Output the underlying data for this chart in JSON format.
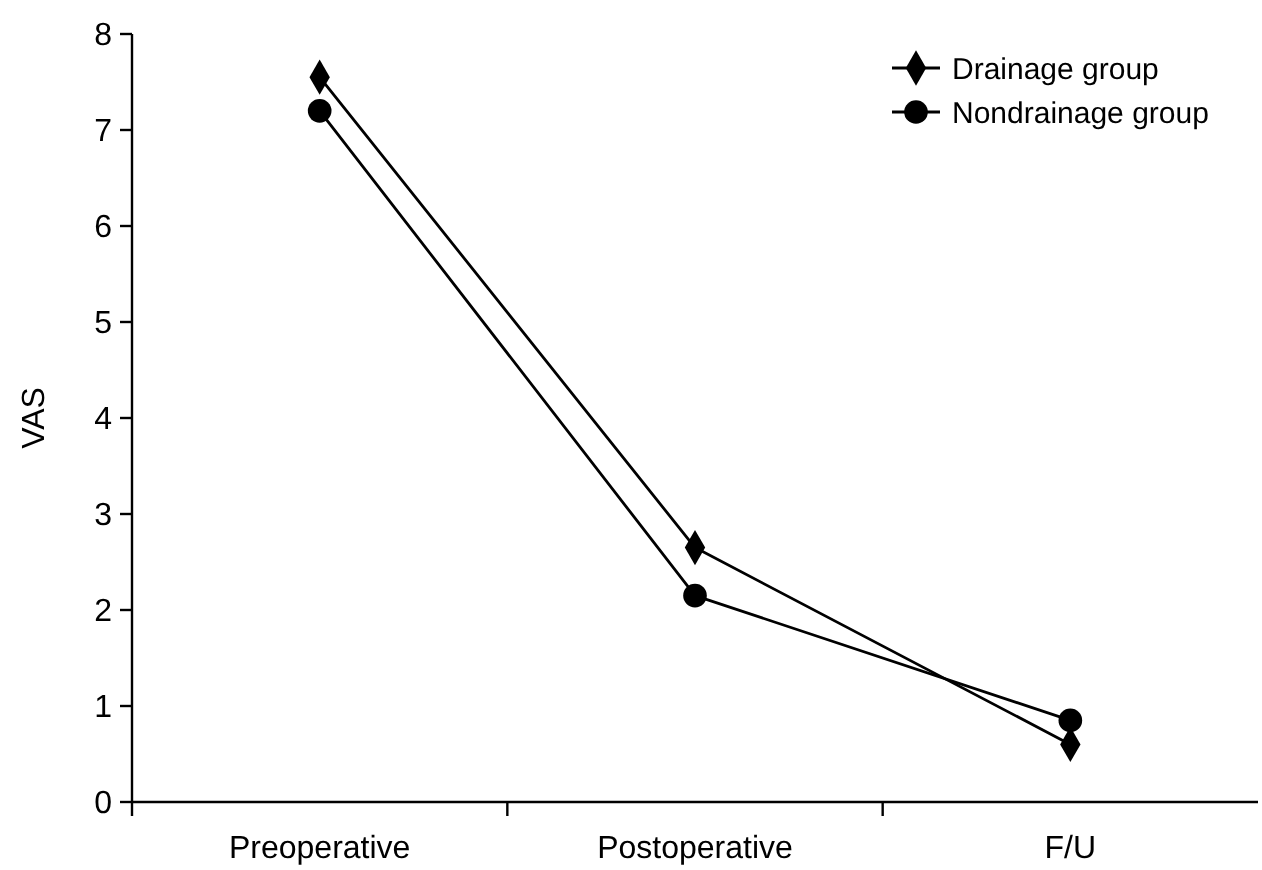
{
  "chart_data": {
    "type": "line",
    "ylabel": "VAS",
    "categories": [
      "Preoperative",
      "Postoperative",
      "F/U"
    ],
    "series": [
      {
        "name": "Drainage group",
        "color": "#000000",
        "marker": "diamond",
        "values": [
          7.55,
          2.65,
          0.6
        ]
      },
      {
        "name": "Nondrainage group",
        "color": "#000000",
        "marker": "circle",
        "values": [
          7.2,
          2.15,
          0.85
        ]
      }
    ],
    "ylim": [
      0,
      8
    ],
    "yticks": [
      0,
      1,
      2,
      3,
      4,
      5,
      6,
      7,
      8
    ],
    "grid": false,
    "legend": "top right",
    "line_style": "solid"
  }
}
